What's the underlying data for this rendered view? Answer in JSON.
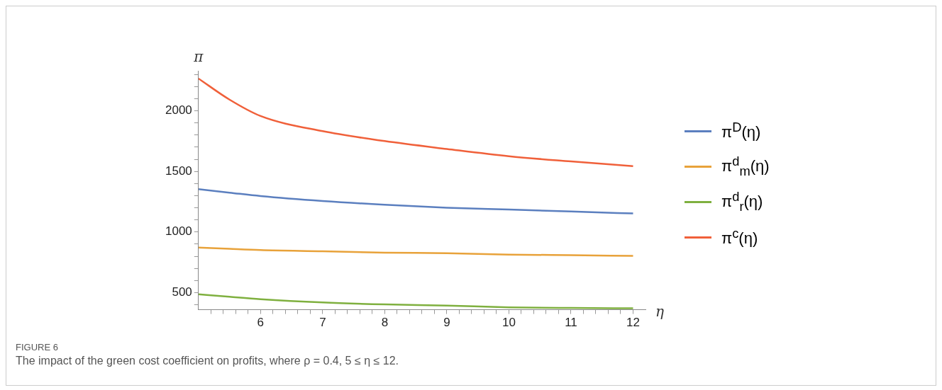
{
  "chart_data": {
    "type": "line",
    "xlabel": "η",
    "ylabel": "π",
    "x": [
      5,
      5.5,
      6,
      7,
      8,
      9,
      10,
      11,
      12
    ],
    "series": [
      {
        "name": "π$^{D}$(η)",
        "color": "#5b7fbf",
        "values": [
          1353,
          1325,
          1297,
          1256,
          1225,
          1201,
          1185,
          1169,
          1153
        ]
      },
      {
        "name": "π$^{d}$$_{m}$(η)",
        "color": "#e8a23a",
        "values": [
          872,
          861,
          851,
          841,
          830,
          825,
          814,
          809,
          803
        ]
      },
      {
        "name": "π$^{d}$$_{r}$(η)",
        "color": "#7fb03f",
        "values": [
          487,
          466,
          446,
          419,
          403,
          393,
          379,
          374,
          371
        ]
      },
      {
        "name": "π$^{c}$(η)",
        "color": "#f0603a",
        "values": [
          2266,
          2092,
          1957,
          1832,
          1750,
          1685,
          1625,
          1582,
          1543
        ]
      }
    ],
    "xlim": [
      5,
      12.2
    ],
    "ylim": [
      359,
      2330
    ],
    "xticks": [
      6,
      7,
      8,
      9,
      10,
      11,
      12,
      {
        "value": 5.2,
        "label": null
      },
      {
        "value": 5.4,
        "label": null
      },
      {
        "value": 5.6,
        "label": null
      },
      {
        "value": 5.8,
        "label": null
      },
      {
        "value": 6.2,
        "label": null
      },
      {
        "value": 6.4,
        "label": null
      },
      {
        "value": 6.6,
        "label": null
      },
      {
        "value": 6.8,
        "label": null
      },
      {
        "value": 7.2,
        "label": null
      },
      {
        "value": 7.4,
        "label": null
      },
      {
        "value": 7.6,
        "label": null
      },
      {
        "value": 7.8,
        "label": null
      },
      {
        "value": 8.2,
        "label": null
      },
      {
        "value": 8.4,
        "label": null
      },
      {
        "value": 8.6,
        "label": null
      },
      {
        "value": 8.8,
        "label": null
      },
      {
        "value": 9.2,
        "label": null
      },
      {
        "value": 9.4,
        "label": null
      },
      {
        "value": 9.6,
        "label": null
      },
      {
        "value": 9.8,
        "label": null
      },
      {
        "value": 10.2,
        "label": null
      },
      {
        "value": 10.4,
        "label": null
      },
      {
        "value": 10.6,
        "label": null
      },
      {
        "value": 10.8,
        "label": null
      },
      {
        "value": 11.2,
        "label": null
      },
      {
        "value": 11.4,
        "label": null
      },
      {
        "value": 11.6,
        "label": null
      },
      {
        "value": 11.8,
        "label": null
      }
    ],
    "yticks": [
      500,
      1000,
      1500,
      2000,
      {
        "value": 400,
        "label": null
      },
      {
        "value": 600,
        "label": null
      },
      {
        "value": 700,
        "label": null
      },
      {
        "value": 800,
        "label": null
      },
      {
        "value": 900,
        "label": null
      },
      {
        "value": 1100,
        "label": null
      },
      {
        "value": 1200,
        "label": null
      },
      {
        "value": 1300,
        "label": null
      },
      {
        "value": 1400,
        "label": null
      },
      {
        "value": 1600,
        "label": null
      },
      {
        "value": 1700,
        "label": null
      },
      {
        "value": 1800,
        "label": null
      },
      {
        "value": 1900,
        "label": null
      },
      {
        "value": 2100,
        "label": null
      },
      {
        "value": 2200,
        "label": null
      },
      {
        "value": 2300,
        "label": null
      }
    ],
    "grid": false,
    "legend": "right",
    "marker": "none",
    "line_style": "solid",
    "annotations": [
      "FIGURE 6",
      "The impact of the green cost coefficient on profits, where ρ = 0.4, 5 ≤ η ≤ 12."
    ]
  }
}
